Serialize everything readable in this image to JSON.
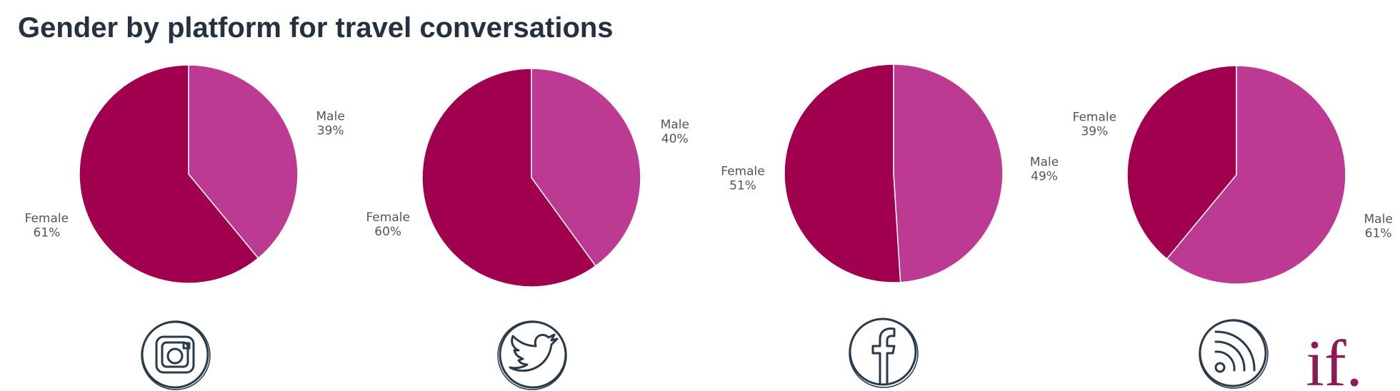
{
  "title": "Gender by platform for travel conversations",
  "logo": "if.",
  "chart_data": [
    {
      "type": "pie",
      "categories": [
        "Male",
        "Female"
      ],
      "values": [
        39,
        61
      ],
      "value_labels": [
        "39%",
        "61%"
      ],
      "colors": [
        "#bd3a93",
        "#a0004e"
      ]
    },
    {
      "type": "pie",
      "categories": [
        "Male",
        "Female"
      ],
      "values": [
        40,
        60
      ],
      "value_labels": [
        "40%",
        "60%"
      ],
      "colors": [
        "#bd3a93",
        "#a0004e"
      ]
    },
    {
      "type": "pie",
      "categories": [
        "Male",
        "Female"
      ],
      "values": [
        49,
        51
      ],
      "value_labels": [
        "49%",
        "51%"
      ],
      "colors": [
        "#bd3a93",
        "#a0004e"
      ]
    },
    {
      "type": "pie",
      "categories": [
        "Male",
        "Female"
      ],
      "values": [
        61,
        39
      ],
      "value_labels": [
        "61%",
        "39%"
      ],
      "colors": [
        "#bd3a93",
        "#a0004e"
      ]
    }
  ]
}
